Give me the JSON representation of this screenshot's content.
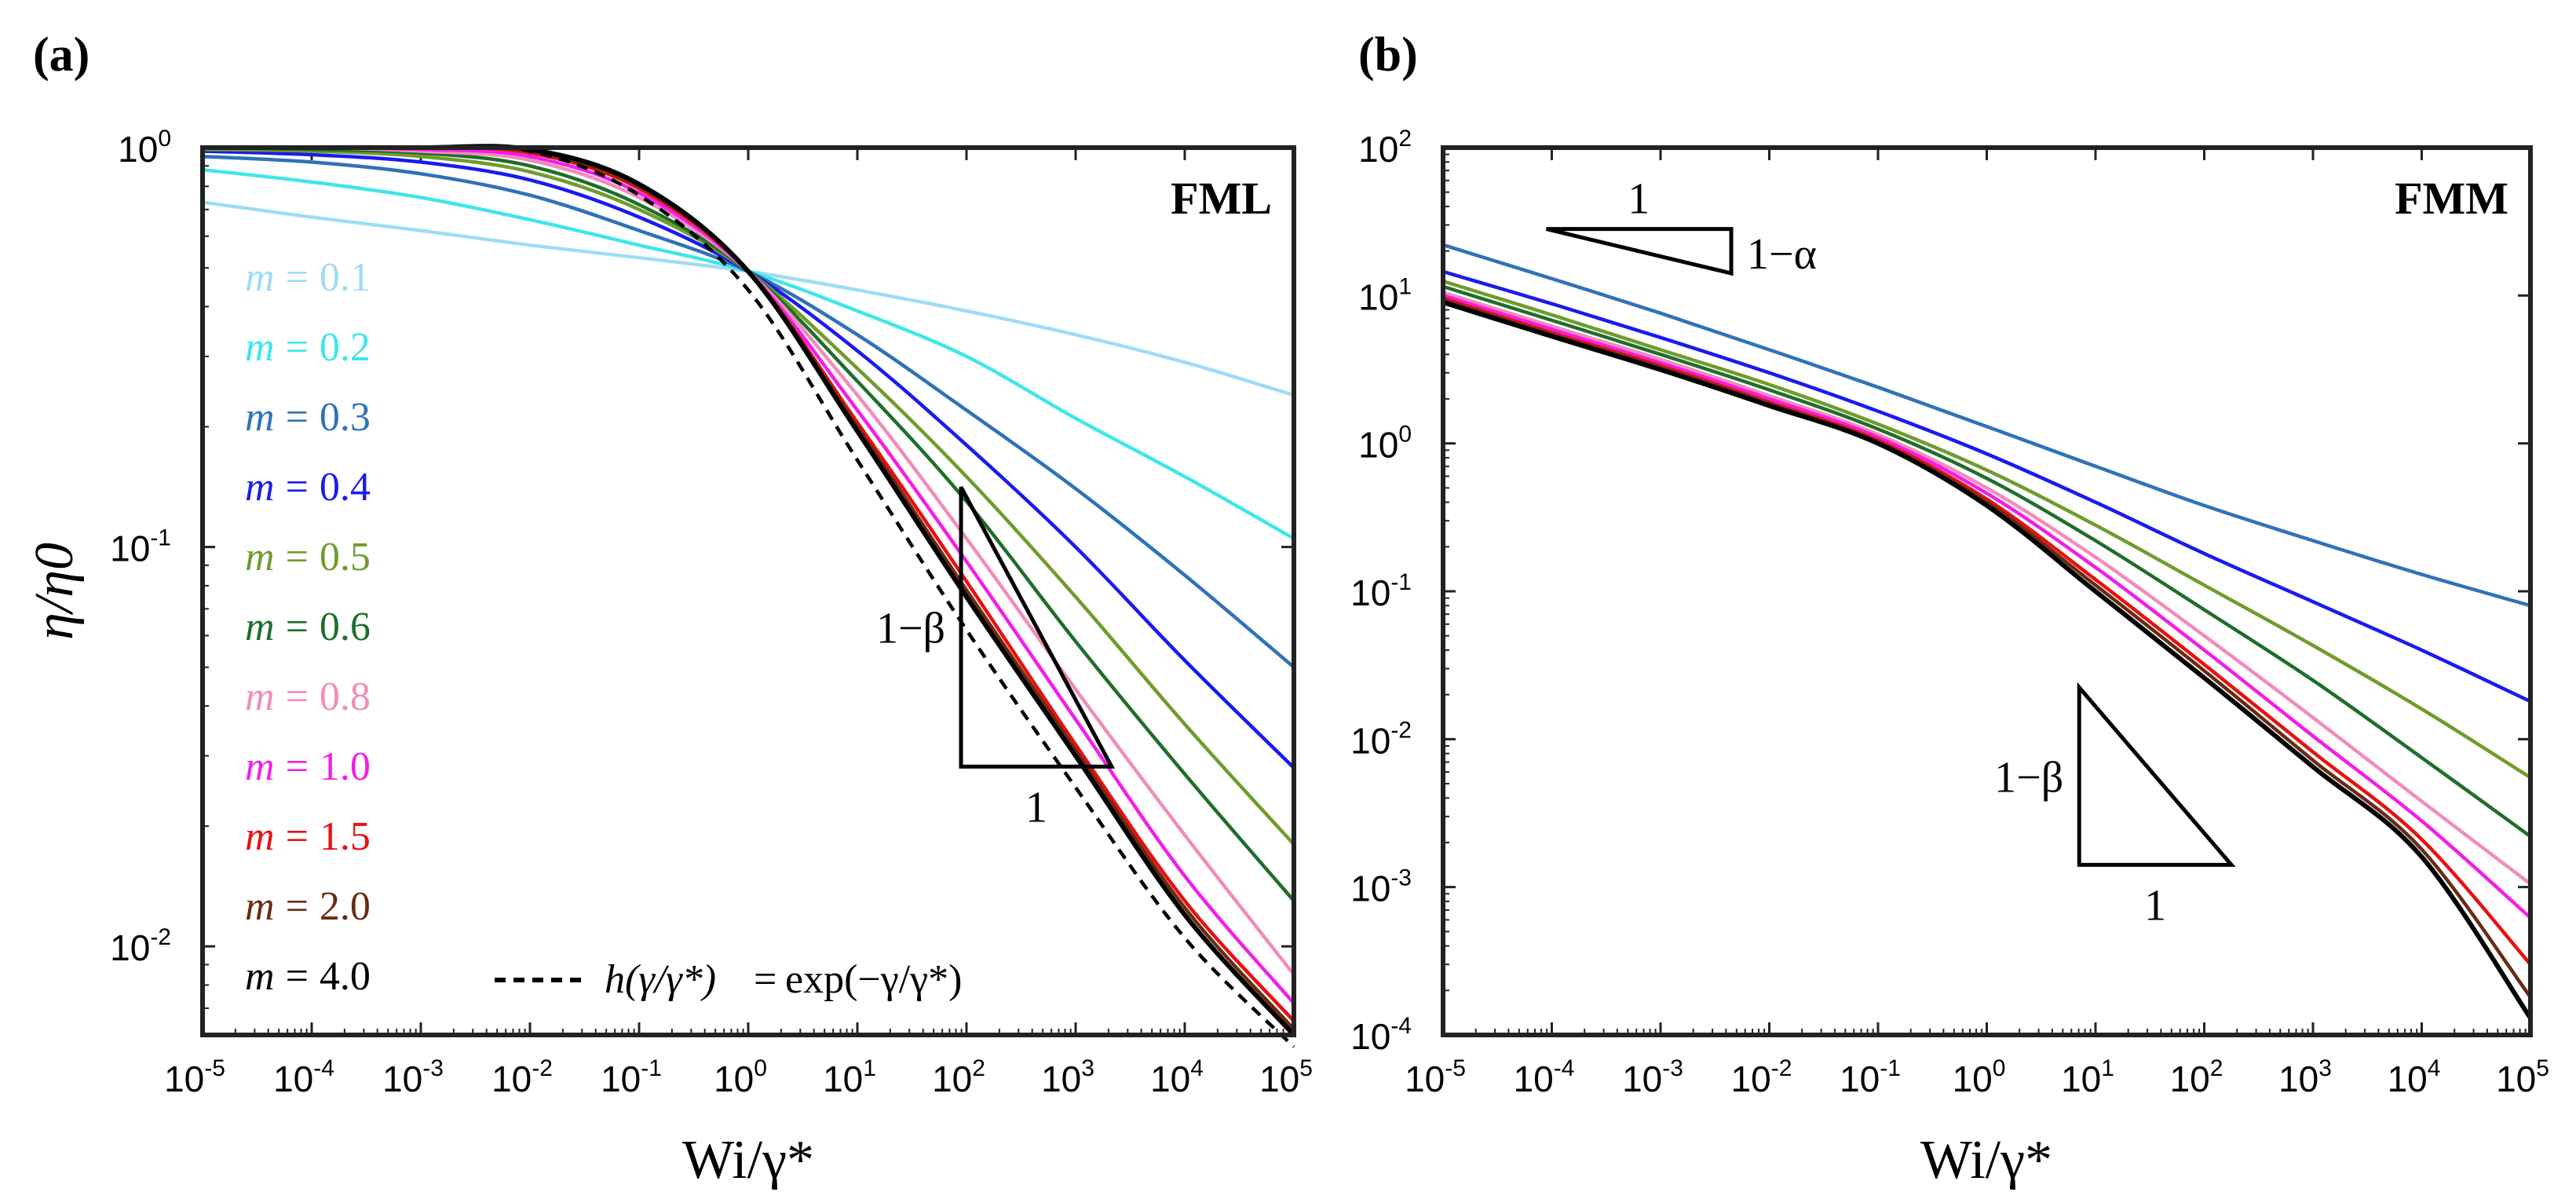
{
  "chart_data": [
    {
      "type": "line",
      "panel_label": "(a)",
      "title": "FML",
      "xlabel": "Wi/γ*",
      "ylabel": "η/η0",
      "xscale": "log",
      "yscale": "log",
      "xlim": [
        1e-05,
        100000.0
      ],
      "ylim": [
        0.006,
        1.0
      ],
      "x_ticks": [
        -5,
        -4,
        -3,
        -2,
        -1,
        0,
        1,
        2,
        3,
        4,
        5
      ],
      "y_ticks": [
        -2,
        -1,
        0
      ],
      "x": [
        -5,
        -4,
        -3,
        -2,
        -1,
        0,
        1,
        2,
        3,
        4,
        5
      ],
      "legend_location": "left",
      "series": [
        {
          "name": "m = 0.1",
          "m_label": "m",
          "m_value": "0.1",
          "color": "#9fdcf4",
          "values": [
            0.73,
            0.67,
            0.62,
            0.57,
            0.53,
            0.49,
            0.44,
            0.39,
            0.34,
            0.29,
            0.24
          ]
        },
        {
          "name": "m = 0.2",
          "m_label": "m",
          "m_value": "0.2",
          "color": "#3fe6e9",
          "values": [
            0.88,
            0.82,
            0.75,
            0.66,
            0.57,
            0.49,
            0.39,
            0.3,
            0.21,
            0.15,
            0.105
          ]
        },
        {
          "name": "m = 0.3",
          "m_label": "m",
          "m_value": "0.3",
          "color": "#2f72b8",
          "values": [
            0.95,
            0.92,
            0.86,
            0.76,
            0.62,
            0.49,
            0.34,
            0.22,
            0.14,
            0.085,
            0.05
          ]
        },
        {
          "name": "m = 0.4",
          "m_label": "m",
          "m_value": "0.4",
          "color": "#1a1af0",
          "values": [
            0.98,
            0.96,
            0.92,
            0.83,
            0.67,
            0.49,
            0.31,
            0.18,
            0.1,
            0.052,
            0.028
          ]
        },
        {
          "name": "m = 0.5",
          "m_label": "m",
          "m_value": "0.5",
          "color": "#6f9c2b",
          "values": [
            0.99,
            0.98,
            0.95,
            0.87,
            0.7,
            0.49,
            0.28,
            0.15,
            0.075,
            0.036,
            0.018
          ]
        },
        {
          "name": "m = 0.6",
          "m_label": "m",
          "m_value": "0.6",
          "color": "#1e6e2a",
          "values": [
            1.0,
            0.99,
            0.97,
            0.9,
            0.72,
            0.49,
            0.26,
            0.13,
            0.058,
            0.027,
            0.013
          ]
        },
        {
          "name": "m = 0.8",
          "m_label": "m",
          "m_value": "0.8",
          "color": "#f08cbc",
          "values": [
            1.0,
            1.0,
            0.98,
            0.93,
            0.75,
            0.49,
            0.24,
            0.105,
            0.044,
            0.019,
            0.0085
          ]
        },
        {
          "name": "m = 1.0",
          "m_label": "m",
          "m_value": "1.0",
          "color": "#f21ee8",
          "values": [
            1.0,
            1.0,
            0.99,
            0.95,
            0.77,
            0.49,
            0.22,
            0.092,
            0.037,
            0.015,
            0.0072
          ]
        },
        {
          "name": "m = 1.5",
          "m_label": "m",
          "m_value": "1.5",
          "color": "#e81010",
          "values": [
            1.0,
            1.0,
            1.0,
            0.97,
            0.79,
            0.49,
            0.205,
            0.082,
            0.032,
            0.013,
            0.0065
          ]
        },
        {
          "name": "m = 2.0",
          "m_label": "m",
          "m_value": "2.0",
          "color": "#6a2b12",
          "values": [
            1.0,
            1.0,
            1.0,
            0.98,
            0.8,
            0.49,
            0.2,
            0.078,
            0.031,
            0.0125,
            0.0062
          ]
        },
        {
          "name": "m = 4.0",
          "m_label": "m",
          "m_value": "4.0",
          "color": "#000000",
          "values": [
            1.0,
            1.0,
            1.0,
            0.99,
            0.81,
            0.49,
            0.195,
            0.075,
            0.03,
            0.012,
            0.006
          ]
        },
        {
          "name": "h(γ/γ*) = exp(−γ/γ*)",
          "color": "#000000",
          "dashed": true,
          "values": [
            1.0,
            1.0,
            1.0,
            0.98,
            0.76,
            0.44,
            0.165,
            0.062,
            0.025,
            0.0105,
            0.0056
          ]
        }
      ],
      "dashed_legend": {
        "lhs": "h(γ/γ*)",
        "eq": "=",
        "rhs": "exp(−γ/γ*)"
      },
      "slope_triangle": {
        "label": "1−β",
        "run_label": "1",
        "x_range": [
          1.95,
          3.33
        ],
        "y_range": [
          -1.55,
          -0.85
        ]
      }
    },
    {
      "type": "line",
      "panel_label": "(b)",
      "title": "FMM",
      "xlabel": "Wi/γ*",
      "ylabel": "",
      "xscale": "log",
      "yscale": "log",
      "xlim": [
        1e-05,
        100000.0
      ],
      "ylim": [
        0.0001,
        100.0
      ],
      "x_ticks": [
        -5,
        -4,
        -3,
        -2,
        -1,
        0,
        1,
        2,
        3,
        4,
        5
      ],
      "y_ticks": [
        -4,
        -3,
        -2,
        -1,
        0,
        1,
        2
      ],
      "x": [
        -5,
        -4,
        -3,
        -2,
        -1,
        0,
        1,
        2,
        3,
        4,
        5
      ],
      "series": [
        {
          "name": "m = 0.3",
          "color": "#2f72b8",
          "values": [
            22.0,
            13.0,
            7.6,
            4.3,
            2.4,
            1.3,
            0.7,
            0.38,
            0.22,
            0.13,
            0.08
          ]
        },
        {
          "name": "m = 0.4",
          "color": "#1a1af0",
          "values": [
            14.5,
            8.8,
            5.2,
            3.0,
            1.65,
            0.85,
            0.4,
            0.18,
            0.085,
            0.04,
            0.018
          ]
        },
        {
          "name": "m = 0.5",
          "color": "#6f9c2b",
          "values": [
            12.5,
            7.4,
            4.3,
            2.5,
            1.35,
            0.66,
            0.28,
            0.11,
            0.043,
            0.016,
            0.0055
          ]
        },
        {
          "name": "m = 0.6",
          "color": "#1e6e2a",
          "values": [
            11.5,
            6.8,
            4.0,
            2.3,
            1.25,
            0.58,
            0.22,
            0.075,
            0.025,
            0.0075,
            0.0022
          ]
        },
        {
          "name": "m = 0.8",
          "color": "#f08cbc",
          "values": [
            10.5,
            6.2,
            3.7,
            2.1,
            1.15,
            0.5,
            0.17,
            0.05,
            0.014,
            0.0038,
            0.00105
          ]
        },
        {
          "name": "m = 1.0",
          "color": "#f21ee8",
          "values": [
            10.0,
            5.9,
            3.5,
            2.0,
            1.1,
            0.46,
            0.145,
            0.04,
            0.0105,
            0.0028,
            0.00062
          ]
        },
        {
          "name": "m = 1.5",
          "color": "#e81010",
          "values": [
            9.6,
            5.6,
            3.35,
            1.9,
            1.05,
            0.42,
            0.12,
            0.032,
            0.0082,
            0.0021,
            0.0003
          ]
        },
        {
          "name": "m = 2.0",
          "color": "#6a2b12",
          "values": [
            9.3,
            5.45,
            3.25,
            1.85,
            1.02,
            0.4,
            0.11,
            0.029,
            0.0072,
            0.0018,
            0.00018
          ]
        },
        {
          "name": "m = 4.0",
          "color": "#000000",
          "values": [
            9.0,
            5.3,
            3.15,
            1.8,
            1.0,
            0.38,
            0.1,
            0.026,
            0.0065,
            0.0016,
            0.00013
          ]
        }
      ],
      "slope_triangle_top": {
        "label": "1−α",
        "run_label": "1",
        "x_range": [
          -4.05,
          -2.35
        ],
        "y_range": [
          1.15,
          1.45
        ]
      },
      "slope_triangle": {
        "label": "1−β",
        "run_label": "1",
        "x_range": [
          0.85,
          2.25
        ],
        "y_range": [
          -2.85,
          -1.65
        ]
      }
    }
  ]
}
